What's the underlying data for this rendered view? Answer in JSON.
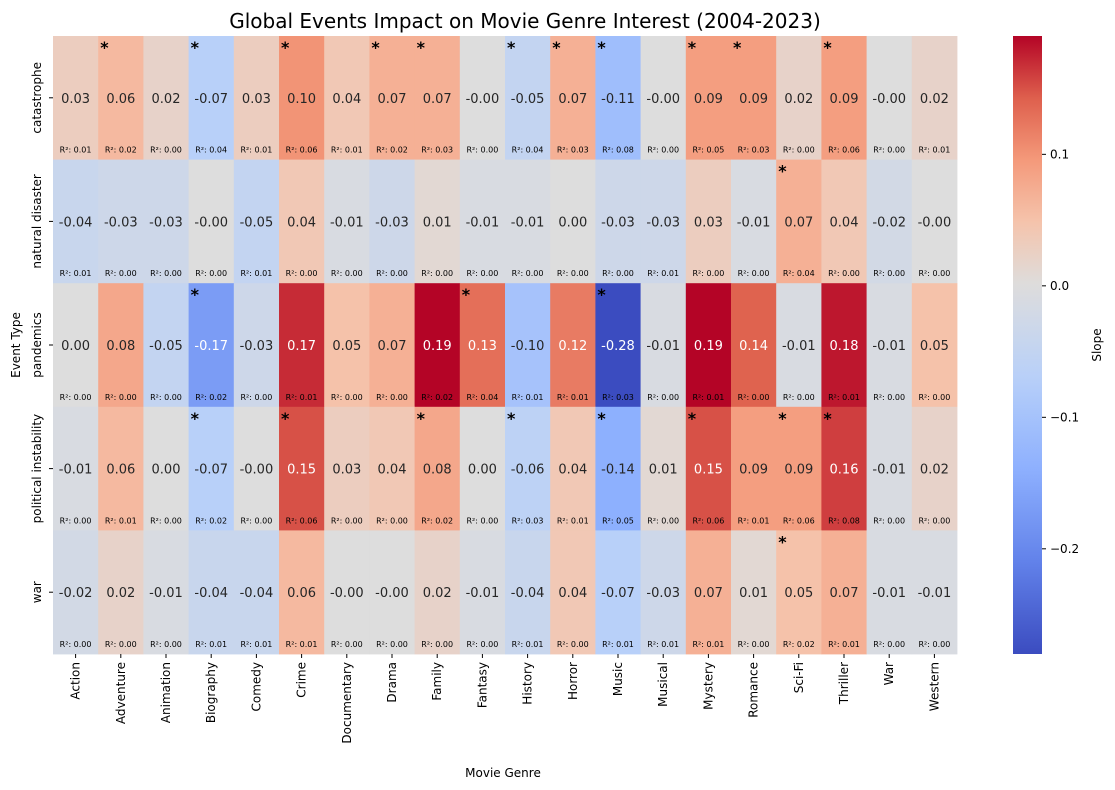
{
  "chart_data": {
    "type": "heatmap",
    "title": "Global Events Impact on Movie Genre Interest (2004-2023)",
    "xlabel": "Movie Genre",
    "ylabel": "Event Type",
    "colorbar_label": "Slope",
    "colormap": "coolwarm",
    "color_range": [
      -0.28,
      0.19
    ],
    "colorbar_ticks": [
      "0.1",
      "0.0",
      "−0.1",
      "−0.2"
    ],
    "colorbar_tick_values": [
      0.1,
      0.0,
      -0.1,
      -0.2
    ],
    "columns": [
      "Action",
      "Adventure",
      "Animation",
      "Biography",
      "Comedy",
      "Crime",
      "Documentary",
      "Drama",
      "Family",
      "Fantasy",
      "History",
      "Horror",
      "Music",
      "Musical",
      "Mystery",
      "Romance",
      "Sci-Fi",
      "Thriller",
      "War",
      "Western"
    ],
    "rows": [
      {
        "name": "catastrophe",
        "slopes": [
          0.03,
          0.06,
          0.02,
          -0.07,
          0.03,
          0.1,
          0.04,
          0.07,
          0.07,
          -0.0,
          -0.05,
          0.07,
          -0.11,
          -0.0,
          0.09,
          0.09,
          0.02,
          0.09,
          -0.0,
          0.02
        ],
        "labels": [
          "0.03",
          "0.06",
          "0.02",
          "-0.07",
          "0.03",
          "0.10",
          "0.04",
          "0.07",
          "0.07",
          "-0.00",
          "-0.05",
          "0.07",
          "-0.11",
          "-0.00",
          "0.09",
          "0.09",
          "0.02",
          "0.09",
          "-0.00",
          "0.02"
        ],
        "r2": [
          "R²: 0.01",
          "R²: 0.02",
          "R²: 0.00",
          "R²: 0.04",
          "R²: 0.01",
          "R²: 0.06",
          "R²: 0.01",
          "R²: 0.02",
          "R²: 0.03",
          "R²: 0.00",
          "R²: 0.04",
          "R²: 0.03",
          "R²: 0.08",
          "R²: 0.00",
          "R²: 0.05",
          "R²: 0.03",
          "R²: 0.00",
          "R²: 0.06",
          "R²: 0.00",
          "R²: 0.01"
        ],
        "significant": [
          false,
          true,
          false,
          true,
          false,
          true,
          false,
          true,
          true,
          false,
          true,
          true,
          true,
          false,
          true,
          true,
          false,
          true,
          false,
          false
        ]
      },
      {
        "name": "natural disaster",
        "slopes": [
          -0.04,
          -0.03,
          -0.03,
          -0.0,
          -0.05,
          0.04,
          -0.01,
          -0.03,
          0.01,
          -0.01,
          -0.01,
          0.0,
          -0.03,
          -0.03,
          0.03,
          -0.01,
          0.07,
          0.04,
          -0.02,
          -0.0
        ],
        "labels": [
          "-0.04",
          "-0.03",
          "-0.03",
          "-0.00",
          "-0.05",
          "0.04",
          "-0.01",
          "-0.03",
          "0.01",
          "-0.01",
          "-0.01",
          "0.00",
          "-0.03",
          "-0.03",
          "0.03",
          "-0.01",
          "0.07",
          "0.04",
          "-0.02",
          "-0.00"
        ],
        "r2": [
          "R²: 0.01",
          "R²: 0.00",
          "R²: 0.00",
          "R²: 0.00",
          "R²: 0.01",
          "R²: 0.00",
          "R²: 0.00",
          "R²: 0.00",
          "R²: 0.00",
          "R²: 0.00",
          "R²: 0.00",
          "R²: 0.00",
          "R²: 0.00",
          "R²: 0.01",
          "R²: 0.00",
          "R²: 0.00",
          "R²: 0.04",
          "R²: 0.00",
          "R²: 0.00",
          "R²: 0.00"
        ],
        "significant": [
          false,
          false,
          false,
          false,
          false,
          false,
          false,
          false,
          false,
          false,
          false,
          false,
          false,
          false,
          false,
          false,
          true,
          false,
          false,
          false
        ]
      },
      {
        "name": "pandemics",
        "slopes": [
          0.0,
          0.08,
          -0.05,
          -0.17,
          -0.03,
          0.17,
          0.05,
          0.07,
          0.19,
          0.13,
          -0.1,
          0.12,
          -0.28,
          -0.01,
          0.19,
          0.14,
          -0.01,
          0.18,
          -0.01,
          0.05
        ],
        "labels": [
          "0.00",
          "0.08",
          "-0.05",
          "-0.17",
          "-0.03",
          "0.17",
          "0.05",
          "0.07",
          "0.19",
          "0.13",
          "-0.10",
          "0.12",
          "-0.28",
          "-0.01",
          "0.19",
          "0.14",
          "-0.01",
          "0.18",
          "-0.01",
          "0.05"
        ],
        "r2": [
          "R²: 0.00",
          "R²: 0.00",
          "R²: 0.00",
          "R²: 0.02",
          "R²: 0.00",
          "R²: 0.01",
          "R²: 0.00",
          "R²: 0.00",
          "R²: 0.02",
          "R²: 0.04",
          "R²: 0.01",
          "R²: 0.01",
          "R²: 0.03",
          "R²: 0.00",
          "R²: 0.01",
          "R²: 0.00",
          "R²: 0.00",
          "R²: 0.01",
          "R²: 0.00",
          "R²: 0.00"
        ],
        "significant": [
          false,
          false,
          false,
          true,
          false,
          false,
          false,
          false,
          false,
          true,
          false,
          false,
          true,
          false,
          false,
          false,
          false,
          false,
          false,
          false
        ]
      },
      {
        "name": "political instability",
        "slopes": [
          -0.01,
          0.06,
          0.0,
          -0.07,
          -0.0,
          0.15,
          0.03,
          0.04,
          0.08,
          0.0,
          -0.06,
          0.04,
          -0.14,
          0.01,
          0.15,
          0.09,
          0.09,
          0.16,
          -0.01,
          0.02
        ],
        "labels": [
          "-0.01",
          "0.06",
          "0.00",
          "-0.07",
          "-0.00",
          "0.15",
          "0.03",
          "0.04",
          "0.08",
          "0.00",
          "-0.06",
          "0.04",
          "-0.14",
          "0.01",
          "0.15",
          "0.09",
          "0.09",
          "0.16",
          "-0.01",
          "0.02"
        ],
        "r2": [
          "R²: 0.00",
          "R²: 0.01",
          "R²: 0.00",
          "R²: 0.02",
          "R²: 0.00",
          "R²: 0.06",
          "R²: 0.00",
          "R²: 0.00",
          "R²: 0.02",
          "R²: 0.00",
          "R²: 0.03",
          "R²: 0.01",
          "R²: 0.05",
          "R²: 0.00",
          "R²: 0.06",
          "R²: 0.01",
          "R²: 0.06",
          "R²: 0.08",
          "R²: 0.00",
          "R²: 0.00"
        ],
        "significant": [
          false,
          false,
          false,
          true,
          false,
          true,
          false,
          false,
          true,
          false,
          true,
          false,
          true,
          false,
          true,
          false,
          true,
          true,
          false,
          false
        ]
      },
      {
        "name": "war",
        "slopes": [
          -0.02,
          0.02,
          -0.01,
          -0.04,
          -0.04,
          0.06,
          -0.0,
          -0.0,
          0.02,
          -0.01,
          -0.04,
          0.04,
          -0.07,
          -0.03,
          0.07,
          0.01,
          0.05,
          0.07,
          -0.01,
          -0.01
        ],
        "labels": [
          "-0.02",
          "0.02",
          "-0.01",
          "-0.04",
          "-0.04",
          "0.06",
          "-0.00",
          "-0.00",
          "0.02",
          "-0.01",
          "-0.04",
          "0.04",
          "-0.07",
          "-0.03",
          "0.07",
          "0.01",
          "0.05",
          "0.07",
          "-0.01",
          "-0.01"
        ],
        "r2": [
          "R²: 0.00",
          "R²: 0.00",
          "R²: 0.00",
          "R²: 0.01",
          "R²: 0.01",
          "R²: 0.01",
          "R²: 0.00",
          "R²: 0.00",
          "R²: 0.00",
          "R²: 0.00",
          "R²: 0.01",
          "R²: 0.00",
          "R²: 0.01",
          "R²: 0.01",
          "R²: 0.01",
          "R²: 0.00",
          "R²: 0.02",
          "R²: 0.01",
          "R²: 0.00",
          "R²: 0.00"
        ],
        "significant": [
          false,
          false,
          false,
          false,
          false,
          false,
          false,
          false,
          false,
          false,
          false,
          false,
          false,
          false,
          false,
          false,
          true,
          false,
          false,
          false
        ]
      }
    ]
  }
}
